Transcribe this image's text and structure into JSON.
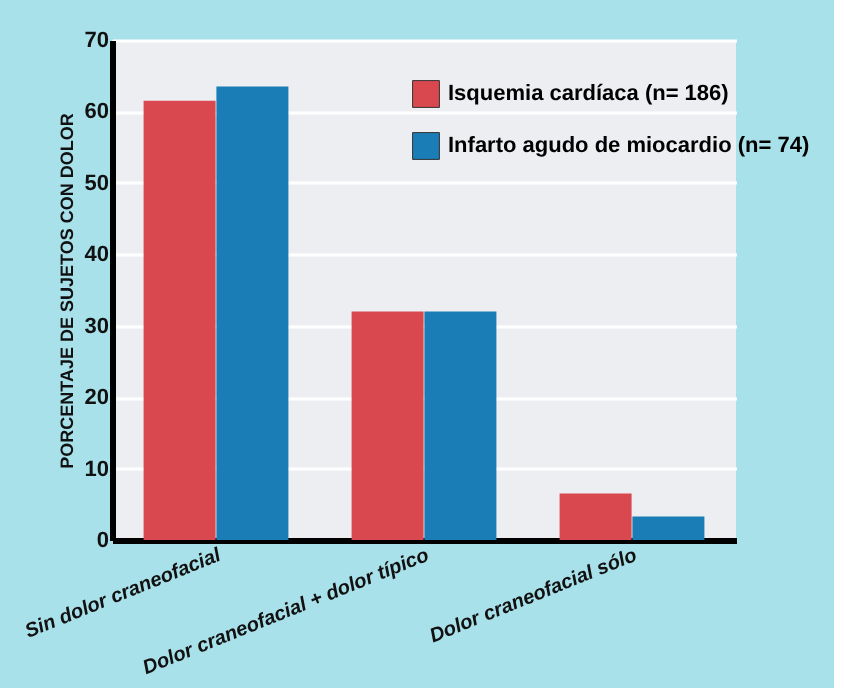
{
  "chart_data": {
    "type": "bar",
    "ylabel": "PORCENTAJE DE SUJETOS CON DOLOR",
    "categories": [
      "Sin dolor craneofacial",
      "Dolor craneofacial + dolor típico",
      "Dolor craneofacial sólo"
    ],
    "series": [
      {
        "name": "Isquemia cardíaca (n= 186)",
        "color": "#d9474f",
        "values": [
          61.5,
          32,
          6.5
        ]
      },
      {
        "name": "Infarto agudo de miocardio (n= 74)",
        "color": "#1a7db5",
        "values": [
          63.5,
          32,
          3.3
        ]
      }
    ],
    "ylim": [
      0,
      70
    ],
    "yticks": [
      0,
      10,
      20,
      30,
      40,
      50,
      60,
      70
    ],
    "grid": "y",
    "legend": "top right"
  }
}
